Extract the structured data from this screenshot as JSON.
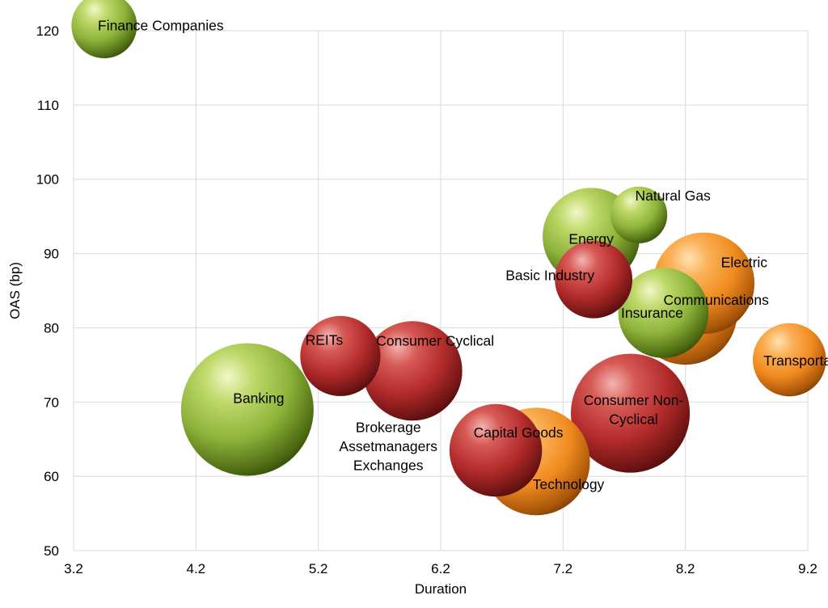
{
  "chart_data": {
    "type": "bubble",
    "xlabel": "Duration",
    "ylabel": "OAS (bp)",
    "xlim": [
      3.2,
      9.2
    ],
    "ylim": [
      50,
      120
    ],
    "x_ticks": [
      "3.2",
      "4.2",
      "5.2",
      "6.2",
      "7.2",
      "8.2",
      "9.2"
    ],
    "y_ticks": [
      "50",
      "60",
      "70",
      "80",
      "90",
      "100",
      "110",
      "120"
    ],
    "grid": true,
    "colors": {
      "green": "#8db33a",
      "red": "#b32b2b",
      "orange": "#f08a1e"
    },
    "points": [
      {
        "label": "Banking",
        "lines": [
          "Banking"
        ],
        "x": 4.62,
        "y": 69.0,
        "size": 82,
        "color": "green"
      },
      {
        "label": "Consumer Cyclical",
        "lines": [
          "Consumer Cyclical"
        ],
        "x": 5.97,
        "y": 74.2,
        "size": 46,
        "color": "green"
      },
      {
        "label": "Brokerage Assetmanagers Exchanges",
        "lines": [
          "Brokerage",
          "Assetmanagers",
          "Exchanges"
        ],
        "x": 5.97,
        "y": 74.2,
        "size": 46,
        "color": "red"
      },
      {
        "label": "REITs",
        "lines": [
          "REITs"
        ],
        "x": 5.38,
        "y": 76.2,
        "size": 30,
        "color": "red"
      },
      {
        "label": "Capital Goods",
        "lines": [
          "Capital Goods"
        ],
        "x": 6.65,
        "y": 63.5,
        "size": 40,
        "color": "red"
      },
      {
        "label": "Technology",
        "lines": [
          "Technology"
        ],
        "x": 6.98,
        "y": 62.0,
        "size": 54,
        "color": "orange"
      },
      {
        "label": "Consumer Non-Cyclical",
        "lines": [
          "Consumer Non-",
          "Cyclical"
        ],
        "x": 7.75,
        "y": 68.5,
        "size": 66,
        "color": "red"
      },
      {
        "label": "Energy",
        "lines": [
          "Energy"
        ],
        "x": 7.43,
        "y": 92.3,
        "size": 44,
        "color": "green"
      },
      {
        "label": "Natural Gas",
        "lines": [
          "Natural Gas"
        ],
        "x": 7.82,
        "y": 95.2,
        "size": 15,
        "color": "green"
      },
      {
        "label": "Basic Industry",
        "lines": [
          "Basic Industry"
        ],
        "x": 7.45,
        "y": 86.5,
        "size": 28,
        "color": "red"
      },
      {
        "label": "Electric",
        "lines": [
          "Electric"
        ],
        "x": 8.35,
        "y": 86.0,
        "size": 48,
        "color": "orange"
      },
      {
        "label": "Communications",
        "lines": [
          "Communications"
        ],
        "x": 8.2,
        "y": 82.0,
        "size": 50,
        "color": "orange"
      },
      {
        "label": "Insurance",
        "lines": [
          "Insurance"
        ],
        "x": 8.02,
        "y": 82.0,
        "size": 38,
        "color": "green"
      },
      {
        "label": "Transportation",
        "lines": [
          "Transportation"
        ],
        "x": 9.05,
        "y": 75.7,
        "size": 25,
        "color": "orange"
      },
      {
        "label": "Finance Companies",
        "lines": [
          "Finance Companies"
        ],
        "x": 3.45,
        "y": 120.7,
        "size": 20,
        "color": "green"
      }
    ]
  }
}
